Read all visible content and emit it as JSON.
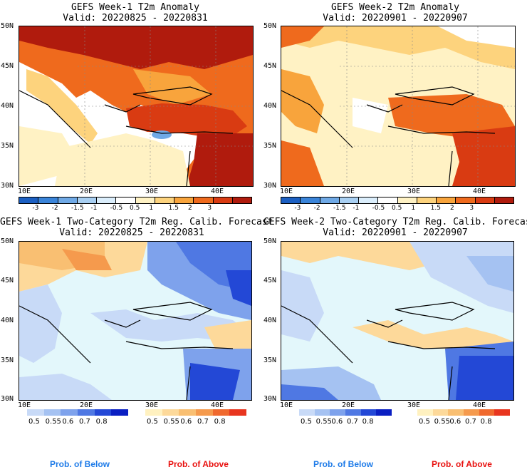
{
  "panels": [
    {
      "title": "GEFS Week-1 T2m Anomaly",
      "valid": "Valid: 20220825 - 20220831"
    },
    {
      "title": "GEFS Week-2 T2m Anomaly",
      "valid": "Valid: 20220901 - 20220907"
    },
    {
      "title": "GEFS Week-1 Two-Category T2m Reg. Calib. Forecast",
      "valid": "Valid: 20220825 - 20220831"
    },
    {
      "title": "GEFS Week-2 Two-Category T2m Reg. Calib. Forecast",
      "valid": "Valid: 20220901 - 20220907"
    }
  ],
  "lat_labels": [
    "50N",
    "45N",
    "40N",
    "35N",
    "30N"
  ],
  "lon_labels": [
    "10E",
    "20E",
    "30E",
    "40E"
  ],
  "anomaly_colorbar": {
    "labels": [
      "-3",
      "-2",
      "-1.5",
      "-1",
      "-0.5",
      "0.5",
      "1",
      "1.5",
      "2",
      "3"
    ],
    "colors": [
      "#1b5fc2",
      "#3a84d9",
      "#6fa9e6",
      "#a8cff2",
      "#dbeefc",
      "#ffffff",
      "#fff2c4",
      "#fdd37d",
      "#f8a43c",
      "#ef6a1d",
      "#d93b12",
      "#b01b0d"
    ]
  },
  "prob_colorbars": {
    "below": {
      "labels": [
        "0.5",
        "0.55",
        "0.6",
        "0.7",
        "0.8"
      ],
      "colors": [
        "#c8daf7",
        "#a5c2f2",
        "#7ea2ec",
        "#4f78e3",
        "#2348d6",
        "#0a1fc2"
      ]
    },
    "above": {
      "labels": [
        "0.5",
        "0.55",
        "0.6",
        "0.7",
        "0.8"
      ],
      "colors": [
        "#fff1c0",
        "#fdd99a",
        "#f9bf72",
        "#f59a4d",
        "#f0692e",
        "#e8351f"
      ]
    }
  },
  "legend": {
    "below": "Prob. of Below",
    "above": "Prob. of Above",
    "below_color": "#1e7be8",
    "above_color": "#e8100e"
  },
  "land_colors": {
    "anom1": "#d93b12",
    "anom2": "#f8a43c",
    "sea_anom": "#ffffff",
    "prob_sea": "#e3f7fb",
    "prob_land1": "#fdd99a",
    "prob_land2": "#c8daf7"
  }
}
